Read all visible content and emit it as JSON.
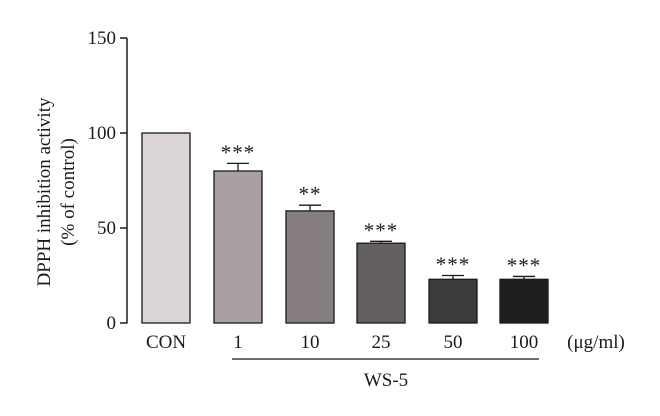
{
  "chart_data": {
    "type": "bar",
    "ylabel": "DPPH inhibition activity",
    "ylabel_line2": "(% of control)",
    "ylim": [
      0,
      150
    ],
    "yticks": [
      0,
      50,
      100,
      150
    ],
    "categories": [
      "CON",
      "1",
      "10",
      "25",
      "50",
      "100"
    ],
    "values": [
      100,
      80,
      59,
      42,
      23,
      23
    ],
    "errors": [
      0,
      4,
      3,
      1,
      2,
      1.5
    ],
    "significance": [
      "",
      "***",
      "**",
      "***",
      "***",
      "***"
    ],
    "bar_colors": [
      "#dcd5d5",
      "#a9a1a1",
      "#877f7f",
      "#646060",
      "#3d3a3a",
      "#1e201d"
    ],
    "unit_label": "(μg/ml)",
    "group_label": "WS-5"
  }
}
